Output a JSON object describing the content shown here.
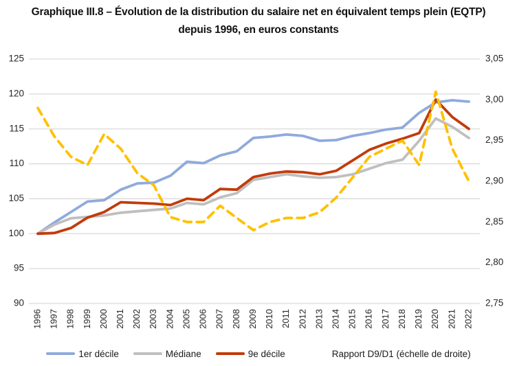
{
  "title": {
    "line1": "Graphique III.8 – Évolution de la distribution du salaire net en équivalent temps plein (EQTP)",
    "line2": "depuis 1996, en euros constants"
  },
  "colors": {
    "d1": "#8FAADC",
    "mediane": "#BFBFBF",
    "d9": "#C23B0B",
    "ratio": "#FFC000",
    "grid": "#D9D9D9",
    "axis_text": "#262626"
  },
  "chart_data": {
    "type": "line",
    "x": [
      "1996",
      "1997",
      "1998",
      "1999",
      "2000",
      "2001",
      "2002",
      "2003",
      "2004",
      "2005",
      "2006",
      "2007",
      "2008",
      "2009",
      "2010",
      "2011",
      "2012",
      "2013",
      "2014",
      "2015",
      "2016",
      "2017",
      "2018",
      "2019",
      "2020",
      "2021",
      "2022"
    ],
    "series": [
      {
        "name": "1er décile",
        "axis": "left",
        "color_key": "d1",
        "style": "solid",
        "values": [
          100.0,
          101.6,
          103.1,
          104.6,
          104.8,
          106.3,
          107.2,
          107.3,
          108.3,
          110.3,
          110.1,
          111.2,
          111.8,
          113.7,
          113.9,
          114.2,
          114.0,
          113.3,
          113.4,
          114.0,
          114.4,
          114.9,
          115.2,
          117.3,
          118.8,
          119.1,
          118.9
        ]
      },
      {
        "name": "Médiane",
        "axis": "left",
        "color_key": "mediane",
        "style": "solid",
        "values": [
          100.0,
          101.3,
          102.2,
          102.4,
          102.6,
          103.0,
          103.2,
          103.4,
          103.6,
          104.4,
          104.2,
          105.2,
          105.8,
          107.7,
          108.1,
          108.5,
          108.2,
          108.0,
          108.1,
          108.5,
          109.3,
          110.1,
          110.6,
          113.3,
          116.5,
          115.3,
          113.7
        ]
      },
      {
        "name": "9e décile",
        "axis": "left",
        "color_key": "d9",
        "style": "solid",
        "values": [
          100.0,
          100.1,
          100.8,
          102.3,
          103.1,
          104.5,
          104.4,
          104.3,
          104.1,
          105.0,
          104.8,
          106.4,
          106.3,
          108.1,
          108.6,
          108.9,
          108.8,
          108.5,
          109.0,
          110.5,
          112.0,
          112.9,
          113.6,
          114.4,
          119.2,
          116.7,
          115.0
        ]
      },
      {
        "name": "Rapport D9/D1 (échelle de droite)",
        "axis": "right",
        "color_key": "ratio",
        "style": "dashed",
        "values": [
          2.99,
          2.955,
          2.93,
          2.92,
          2.958,
          2.94,
          2.91,
          2.895,
          2.856,
          2.85,
          2.85,
          2.87,
          2.855,
          2.84,
          2.85,
          2.855,
          2.855,
          2.862,
          2.88,
          2.905,
          2.93,
          2.94,
          2.95,
          2.92,
          3.01,
          2.94,
          2.9
        ]
      }
    ],
    "left_axis": {
      "min": 90,
      "max": 125,
      "step": 5,
      "ticks": [
        "125",
        "120",
        "115",
        "110",
        "105",
        "100",
        "95",
        "90"
      ]
    },
    "right_axis": {
      "min": 2.75,
      "max": 3.05,
      "step": 0.05,
      "ticks": [
        "3,05",
        "3,00",
        "2,95",
        "2,90",
        "2,85",
        "2,80",
        "2,75"
      ]
    },
    "grid": true,
    "legend_position": "bottom"
  },
  "legend": {
    "items": [
      {
        "label": "1er décile",
        "color_key": "d1",
        "style": "solid"
      },
      {
        "label": "Médiane",
        "color_key": "mediane",
        "style": "solid"
      },
      {
        "label": "9e décile",
        "color_key": "d9",
        "style": "solid"
      },
      {
        "label": "Rapport D9/D1 (échelle de droite)",
        "color_key": "ratio",
        "style": "dashed"
      }
    ]
  }
}
